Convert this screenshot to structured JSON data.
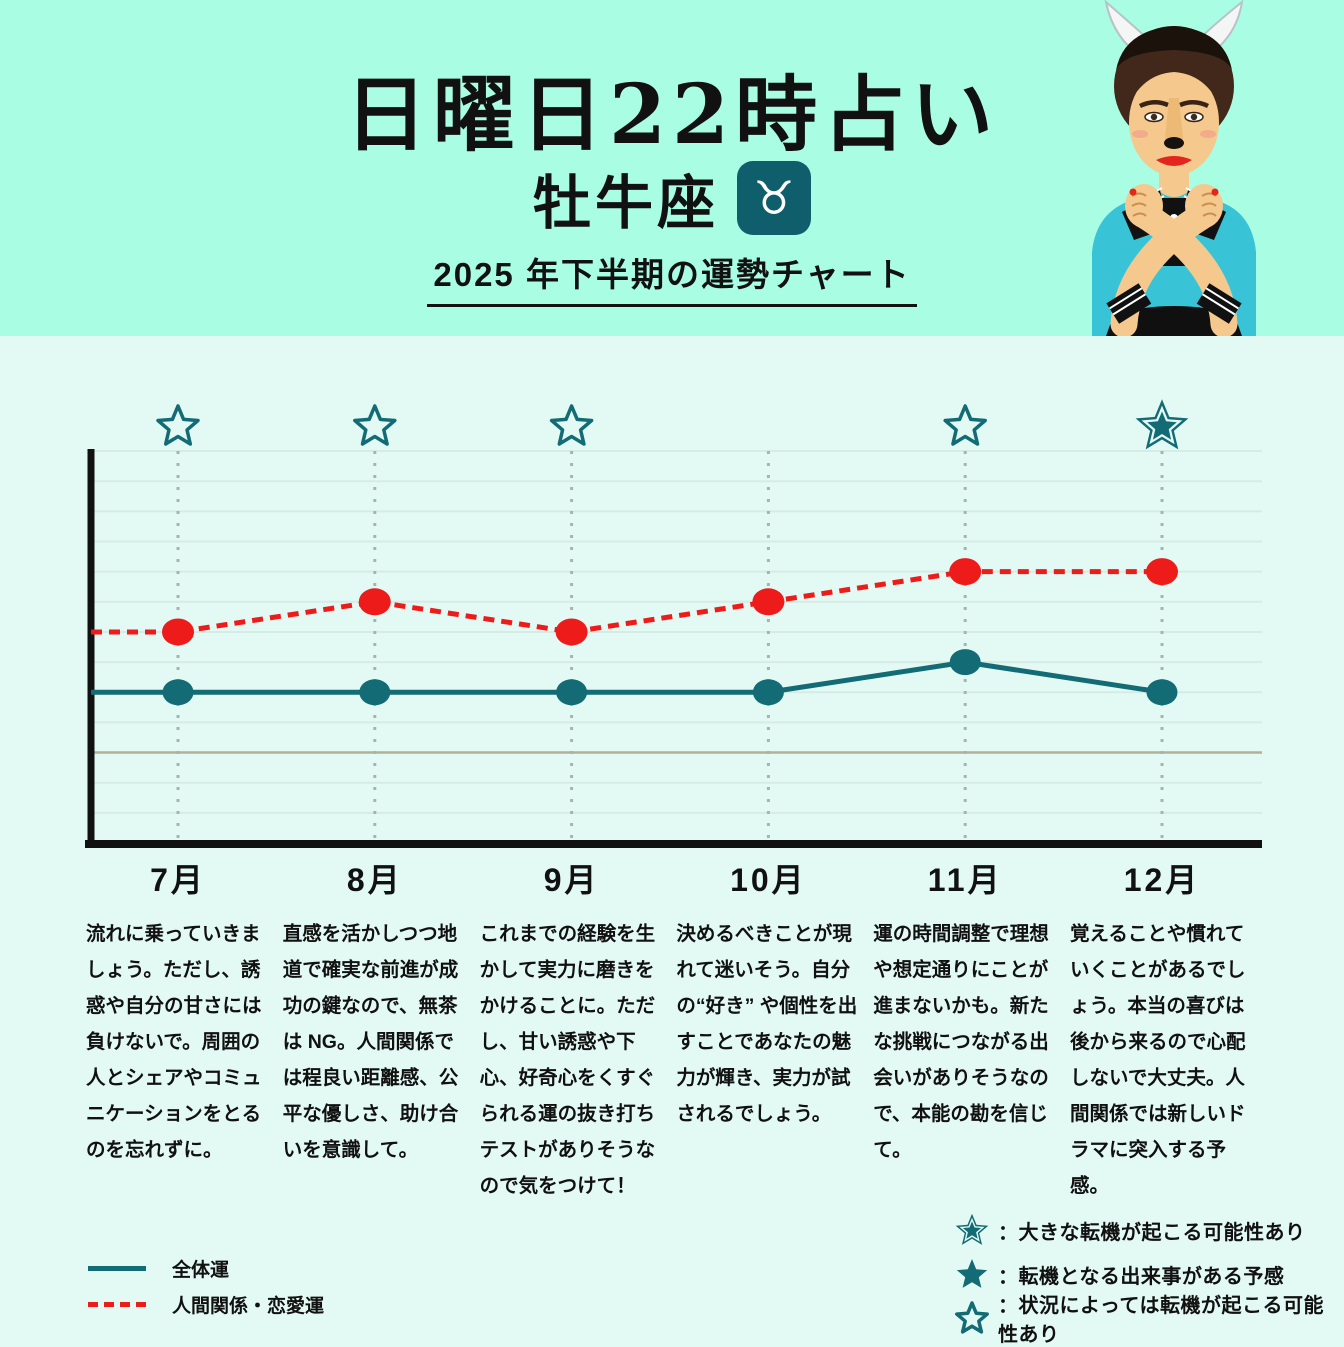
{
  "header": {
    "title": "日曜日22時占い",
    "sign": "牡牛座",
    "sign_symbol": "♉",
    "subtitle": "2025 年下半期の運勢チャート"
  },
  "colors": {
    "header_bg": "#a8fde3",
    "body_bg": "#e3faf4",
    "teal": "#136b75",
    "red": "#ee1b1b",
    "axis": "#111111",
    "grid": "#d6ebe4",
    "grid_highlight": "#b3b099",
    "dotted_guide": "#a9b3ae"
  },
  "chart_data": {
    "type": "line",
    "title": "2025 年下半期の運勢チャート",
    "categories": [
      "7月",
      "8月",
      "9月",
      "10月",
      "11月",
      "12月"
    ],
    "series": [
      {
        "name": "全体運",
        "values": [
          5,
          5,
          5,
          5,
          6,
          5
        ],
        "color": "#136b75",
        "dashed": false
      },
      {
        "name": "人間関係・恋愛運",
        "values": [
          7,
          8,
          7,
          8,
          9,
          9
        ],
        "color": "#ee1b1b",
        "dashed": true
      }
    ],
    "ylim": [
      0,
      13
    ],
    "grid": true,
    "highlight_gridline": 3,
    "stars": [
      "outline",
      "outline",
      "outline",
      "none",
      "outline",
      "double"
    ],
    "legend_position": "bottom-left"
  },
  "months": [
    {
      "label": "7月",
      "star": "outline",
      "text": "流れに乗っていきましょう。ただし、誘惑や自分の甘さには負けないで。周囲の人とシェアやコミュニケーションをとるのを忘れずに。"
    },
    {
      "label": "8月",
      "star": "outline",
      "text": "直感を活かしつつ地道で確実な前進が成功の鍵なので、無茶は NG。人間関係では程良い距離感、公平な優しさ、助け合いを意識して。"
    },
    {
      "label": "9月",
      "star": "outline",
      "text": "これまでの経験を生かして実力に磨きをかけることに。ただし、甘い誘惑や下心、好奇心をくすぐられる運の抜き打ちテストがありそうなので気をつけて！"
    },
    {
      "label": "10月",
      "star": "none",
      "text": "決めるべきことが現れて迷いそう。自分の“好き” や個性を出すことであなたの魅力が輝き、実力が試されるでしょう。"
    },
    {
      "label": "11月",
      "star": "outline",
      "text": "運の時間調整で理想や想定通りにことが進まないかも。新たな挑戦につながる出会いがありそうなので、本能の勘を信じて。"
    },
    {
      "label": "12月",
      "star": "double",
      "text": "覚えることや慣れていくことがあるでしょう。本当の喜びは後から来るので心配しないで大丈夫。人間関係では新しいドラマに突入する予感。"
    }
  ],
  "line_legend": [
    {
      "name": "全体運",
      "style": "solid",
      "color": "#136b75"
    },
    {
      "name": "人間関係・恋愛運",
      "style": "dashed",
      "color": "#ee1b1b"
    }
  ],
  "star_legend": [
    {
      "icon": "double-star",
      "label": "：大きな転機が起こる可能性あり"
    },
    {
      "icon": "filled-star",
      "label": "：転機となる出来事がある予感"
    },
    {
      "icon": "outline-star",
      "label": "：状況によっては転機が起こる可能性あり"
    }
  ]
}
